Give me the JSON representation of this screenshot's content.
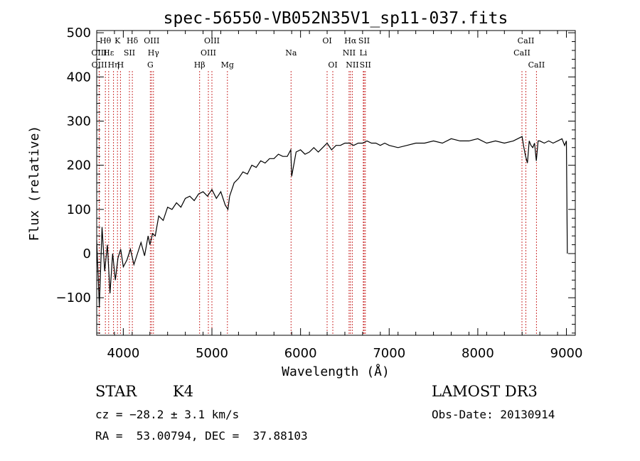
{
  "chart_data": {
    "type": "line",
    "title": "spec-56550-VB052N35V1_sp11-037.fits",
    "xlabel": "Wavelength (Å)",
    "ylabel": "Flux (relative)",
    "xlim": [
      3700,
      9100
    ],
    "ylim": [
      -185,
      505
    ],
    "xticks": [
      4000,
      5000,
      6000,
      7000,
      8000,
      9000
    ],
    "xtick_labels": [
      "4000",
      "5000",
      "6000",
      "7000",
      "8000",
      "9000"
    ],
    "yticks": [
      -100,
      0,
      100,
      200,
      300,
      400,
      500
    ],
    "ytick_labels": [
      "−100",
      "0",
      "100",
      "200",
      "300",
      "400",
      "500"
    ],
    "grid": false,
    "line_color": "#000000",
    "marker_color": "#cc3333",
    "spectrum": {
      "x": [
        3700,
        3730,
        3760,
        3790,
        3820,
        3850,
        3880,
        3910,
        3940,
        3970,
        4000,
        4040,
        4080,
        4120,
        4160,
        4200,
        4240,
        4280,
        4300,
        4330,
        4360,
        4400,
        4450,
        4500,
        4550,
        4600,
        4650,
        4700,
        4750,
        4800,
        4850,
        4900,
        4950,
        5000,
        5050,
        5100,
        5150,
        5180,
        5200,
        5250,
        5300,
        5350,
        5400,
        5450,
        5500,
        5550,
        5600,
        5650,
        5700,
        5750,
        5800,
        5850,
        5890,
        5900,
        5950,
        6000,
        6050,
        6100,
        6150,
        6200,
        6250,
        6300,
        6350,
        6400,
        6450,
        6500,
        6550,
        6600,
        6650,
        6700,
        6750,
        6800,
        6850,
        6900,
        6950,
        7000,
        7100,
        7200,
        7300,
        7400,
        7500,
        7600,
        7700,
        7800,
        7900,
        8000,
        8100,
        8200,
        8300,
        8400,
        8450,
        8500,
        8520,
        8540,
        8560,
        8580,
        8600,
        8620,
        8640,
        8660,
        8680,
        8700,
        8750,
        8800,
        8850,
        8900,
        8950,
        8980,
        9000,
        9010
      ],
      "y": [
        30,
        -120,
        60,
        -40,
        20,
        -90,
        0,
        -60,
        -10,
        10,
        -30,
        -15,
        10,
        -25,
        0,
        25,
        -5,
        40,
        20,
        45,
        40,
        85,
        75,
        105,
        100,
        115,
        105,
        125,
        130,
        120,
        135,
        140,
        130,
        145,
        125,
        140,
        110,
        100,
        130,
        160,
        170,
        185,
        180,
        200,
        195,
        210,
        205,
        215,
        215,
        225,
        220,
        220,
        235,
        175,
        230,
        235,
        225,
        230,
        240,
        230,
        240,
        250,
        235,
        245,
        245,
        250,
        250,
        245,
        250,
        250,
        255,
        250,
        250,
        245,
        250,
        245,
        240,
        245,
        250,
        250,
        255,
        250,
        260,
        255,
        255,
        260,
        250,
        255,
        250,
        255,
        260,
        265,
        240,
        220,
        205,
        255,
        245,
        240,
        250,
        210,
        255,
        255,
        250,
        255,
        250,
        255,
        260,
        245,
        255,
        0
      ]
    },
    "line_markers": [
      {
        "name": "Hθ",
        "x": 3798,
        "row": 0
      },
      {
        "name": "OIII",
        "x": 3727,
        "row": 1
      },
      {
        "name": "OIII",
        "x": 3730,
        "row": 2
      },
      {
        "name": "Hε",
        "x": 3835,
        "row": 1
      },
      {
        "name": "Hη",
        "x": 3889,
        "row": 2
      },
      {
        "name": "K",
        "x": 3934,
        "row": 0
      },
      {
        "name": "H",
        "x": 3968,
        "row": 2
      },
      {
        "name": "SII",
        "x": 4069,
        "row": 1
      },
      {
        "name": "Hδ",
        "x": 4102,
        "row": 0
      },
      {
        "name": "OIII",
        "x": 4320,
        "row": 0
      },
      {
        "name": "Hγ",
        "x": 4340,
        "row": 1
      },
      {
        "name": "G",
        "x": 4305,
        "row": 2
      },
      {
        "name": "OIII",
        "x": 5000,
        "row": 0
      },
      {
        "name": "OIII",
        "x": 4960,
        "row": 1
      },
      {
        "name": "Hβ",
        "x": 4861,
        "row": 2
      },
      {
        "name": "Mg",
        "x": 5175,
        "row": 2
      },
      {
        "name": "Na",
        "x": 5893,
        "row": 1
      },
      {
        "name": "OI",
        "x": 6300,
        "row": 0
      },
      {
        "name": "OI",
        "x": 6364,
        "row": 2
      },
      {
        "name": "Hα",
        "x": 6563,
        "row": 0
      },
      {
        "name": "NII",
        "x": 6548,
        "row": 1
      },
      {
        "name": "NII",
        "x": 6584,
        "row": 2
      },
      {
        "name": "SII",
        "x": 6717,
        "row": 0
      },
      {
        "name": "Li",
        "x": 6708,
        "row": 1
      },
      {
        "name": "SII",
        "x": 6731,
        "row": 2
      },
      {
        "name": "CaII",
        "x": 8542,
        "row": 0
      },
      {
        "name": "CaII",
        "x": 8498,
        "row": 1
      },
      {
        "name": "CaII",
        "x": 8662,
        "row": 2
      }
    ]
  },
  "info": {
    "class": "STAR",
    "subclass": "K4",
    "survey": "LAMOST DR3",
    "cz": "cz = −28.2 ± 3.1 km/s",
    "obs_date": "Obs-Date: 20130914",
    "coords": "RA =  53.00794, DEC =  37.88103"
  }
}
